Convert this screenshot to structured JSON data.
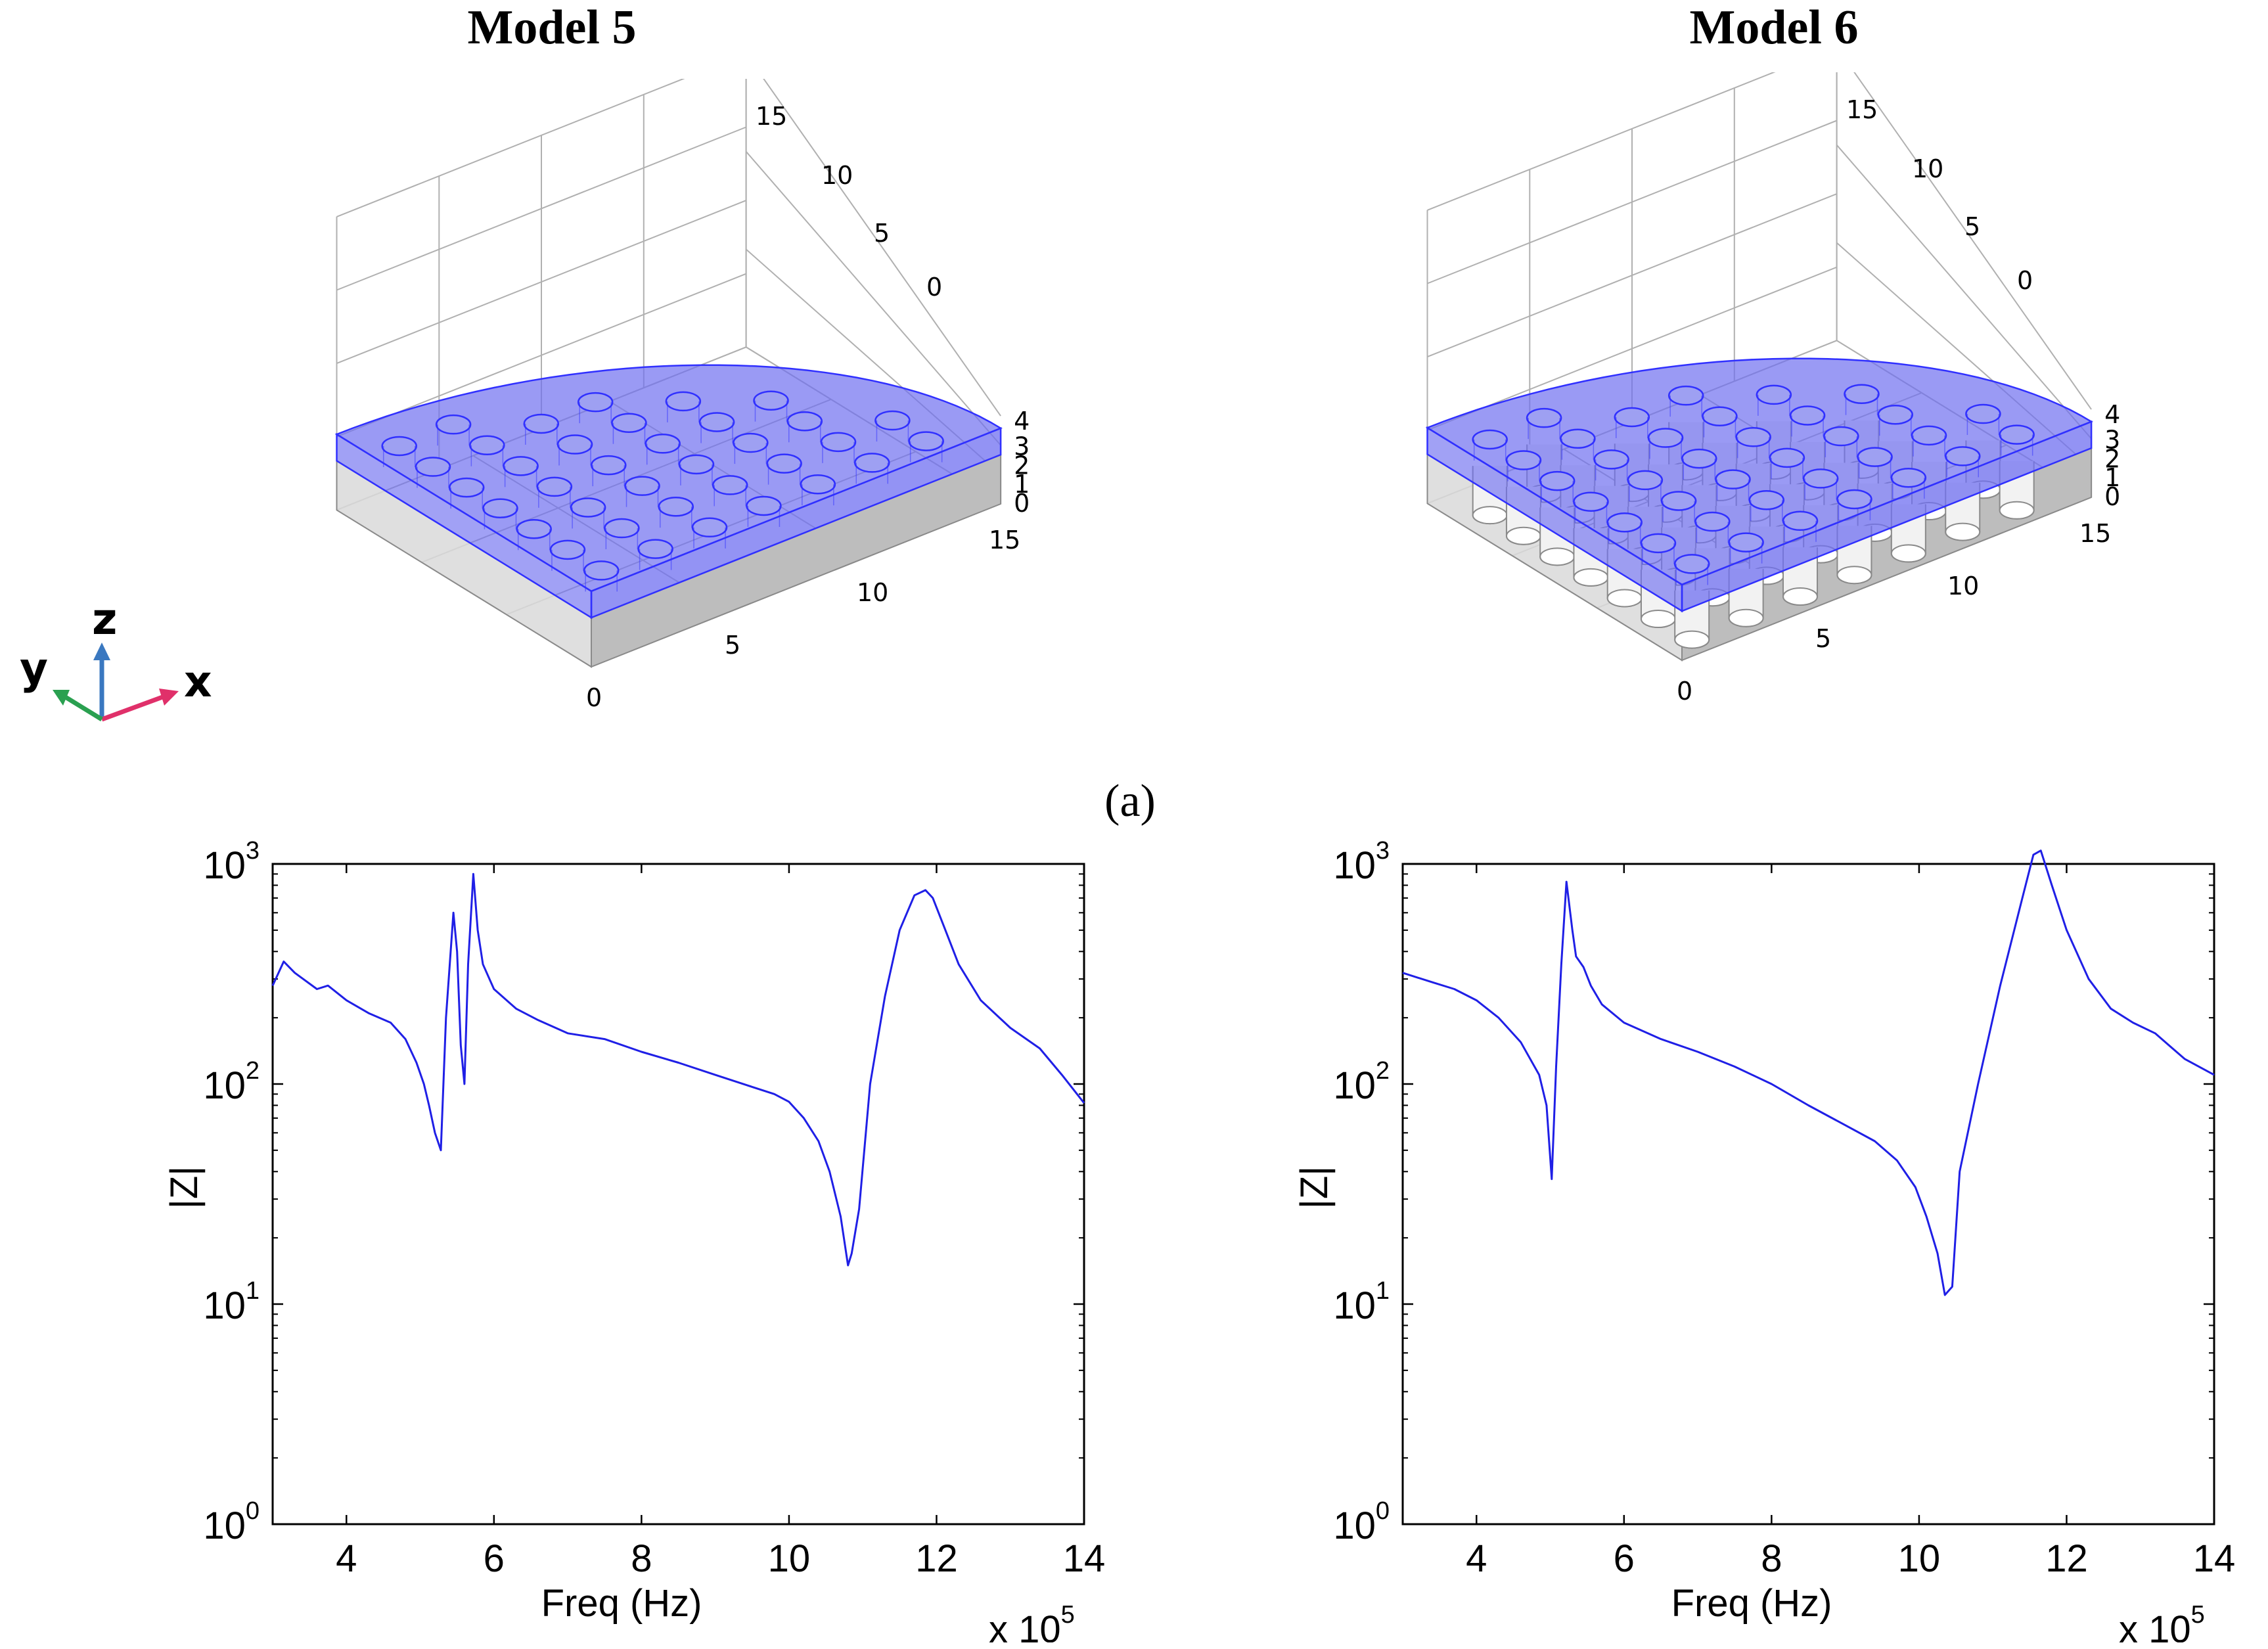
{
  "models": [
    {
      "title": "Model 5",
      "variant": "shallow-holes"
    },
    {
      "title": "Model 6",
      "variant": "through-holes"
    }
  ],
  "axis3d": {
    "x_ticks": [
      "0",
      "5",
      "10",
      "15"
    ],
    "y_ticks": [
      "15",
      "10",
      "5",
      "0"
    ],
    "z_ticks": [
      "4",
      "3",
      "2",
      "1",
      "0"
    ]
  },
  "triad": {
    "x": "x",
    "y": "y",
    "z": "z"
  },
  "caption": "(a)",
  "colors": {
    "matching_layer": "#6f6ff0",
    "edge": "#3030ff",
    "body": "#c8c8c8",
    "curve": "#1f1fe6"
  },
  "chart_data": [
    {
      "type": "line",
      "title": "",
      "xlabel": "Freq (Hz)",
      "ylabel": "|Z|",
      "x_multiplier": "x 10",
      "x_multiplier_exp": "5",
      "xlim": [
        3,
        14
      ],
      "ylim": [
        1,
        1000
      ],
      "yscale": "log",
      "x_ticks": [
        "4",
        "6",
        "8",
        "10",
        "12",
        "14"
      ],
      "y_ticks": [
        {
          "base": "10",
          "exp": "3"
        },
        {
          "base": "10",
          "exp": "2"
        },
        {
          "base": "10",
          "exp": "1"
        },
        {
          "base": "10",
          "exp": "0"
        }
      ],
      "series": [
        {
          "x": [
            3.0,
            3.15,
            3.3,
            3.6,
            3.75,
            4.0,
            4.3,
            4.6,
            4.8,
            4.95,
            5.05,
            5.12,
            5.2,
            5.28,
            5.35,
            5.45,
            5.5,
            5.55,
            5.6,
            5.65,
            5.72,
            5.78,
            5.85,
            6.0,
            6.3,
            6.6,
            7.0,
            7.5,
            8.0,
            8.5,
            9.0,
            9.5,
            9.8,
            10.0,
            10.2,
            10.4,
            10.55,
            10.7,
            10.8,
            10.85,
            10.95,
            11.1,
            11.3,
            11.5,
            11.7,
            11.85,
            11.95,
            12.1,
            12.3,
            12.6,
            13.0,
            13.4,
            13.7,
            14.0
          ],
          "y": [
            280,
            360,
            320,
            270,
            280,
            240,
            210,
            190,
            160,
            125,
            100,
            80,
            60,
            50,
            200,
            600,
            400,
            150,
            100,
            350,
            900,
            500,
            350,
            270,
            220,
            195,
            170,
            160,
            140,
            125,
            110,
            97,
            90,
            83,
            70,
            55,
            40,
            25,
            15,
            17,
            27,
            100,
            250,
            500,
            720,
            760,
            700,
            520,
            350,
            240,
            180,
            145,
            110,
            82
          ]
        }
      ]
    },
    {
      "type": "line",
      "title": "",
      "xlabel": "Freq (Hz)",
      "ylabel": "|Z|",
      "x_multiplier": "x 10",
      "x_multiplier_exp": "5",
      "xlim": [
        3,
        14
      ],
      "ylim": [
        1,
        1000
      ],
      "yscale": "log",
      "x_ticks": [
        "4",
        "6",
        "8",
        "10",
        "12",
        "14"
      ],
      "y_ticks": [
        {
          "base": "10",
          "exp": "3"
        },
        {
          "base": "10",
          "exp": "2"
        },
        {
          "base": "10",
          "exp": "1"
        },
        {
          "base": "10",
          "exp": "0"
        }
      ],
      "series": [
        {
          "x": [
            3.0,
            3.4,
            3.7,
            4.0,
            4.3,
            4.6,
            4.85,
            4.95,
            5.02,
            5.08,
            5.15,
            5.22,
            5.3,
            5.35,
            5.45,
            5.55,
            5.7,
            6.0,
            6.5,
            7.0,
            7.5,
            8.0,
            8.5,
            9.0,
            9.4,
            9.7,
            9.95,
            10.1,
            10.25,
            10.35,
            10.45,
            10.55,
            10.8,
            11.1,
            11.4,
            11.55,
            11.65,
            11.8,
            12.0,
            12.3,
            12.6,
            12.9,
            13.2,
            13.6,
            14.0
          ],
          "y": [
            320,
            290,
            270,
            240,
            200,
            155,
            110,
            80,
            37,
            120,
            350,
            830,
            500,
            380,
            340,
            280,
            230,
            190,
            160,
            140,
            120,
            100,
            80,
            65,
            55,
            45,
            34,
            25,
            17,
            11,
            12,
            40,
            100,
            280,
            700,
            1100,
            1150,
            800,
            500,
            300,
            220,
            190,
            170,
            130,
            110
          ]
        }
      ]
    }
  ]
}
